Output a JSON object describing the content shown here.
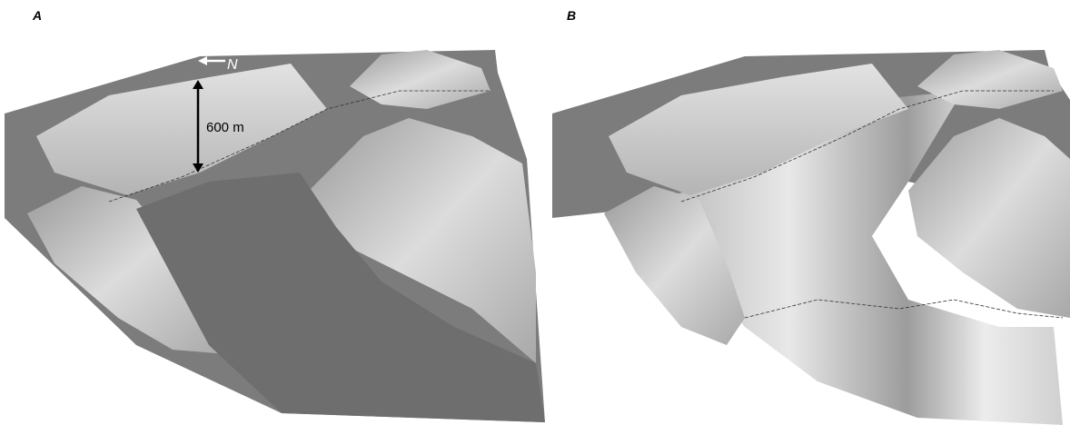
{
  "panels": [
    {
      "label": "A",
      "north_label": "N",
      "scale_label": "600 m"
    },
    {
      "label": "B"
    }
  ]
}
